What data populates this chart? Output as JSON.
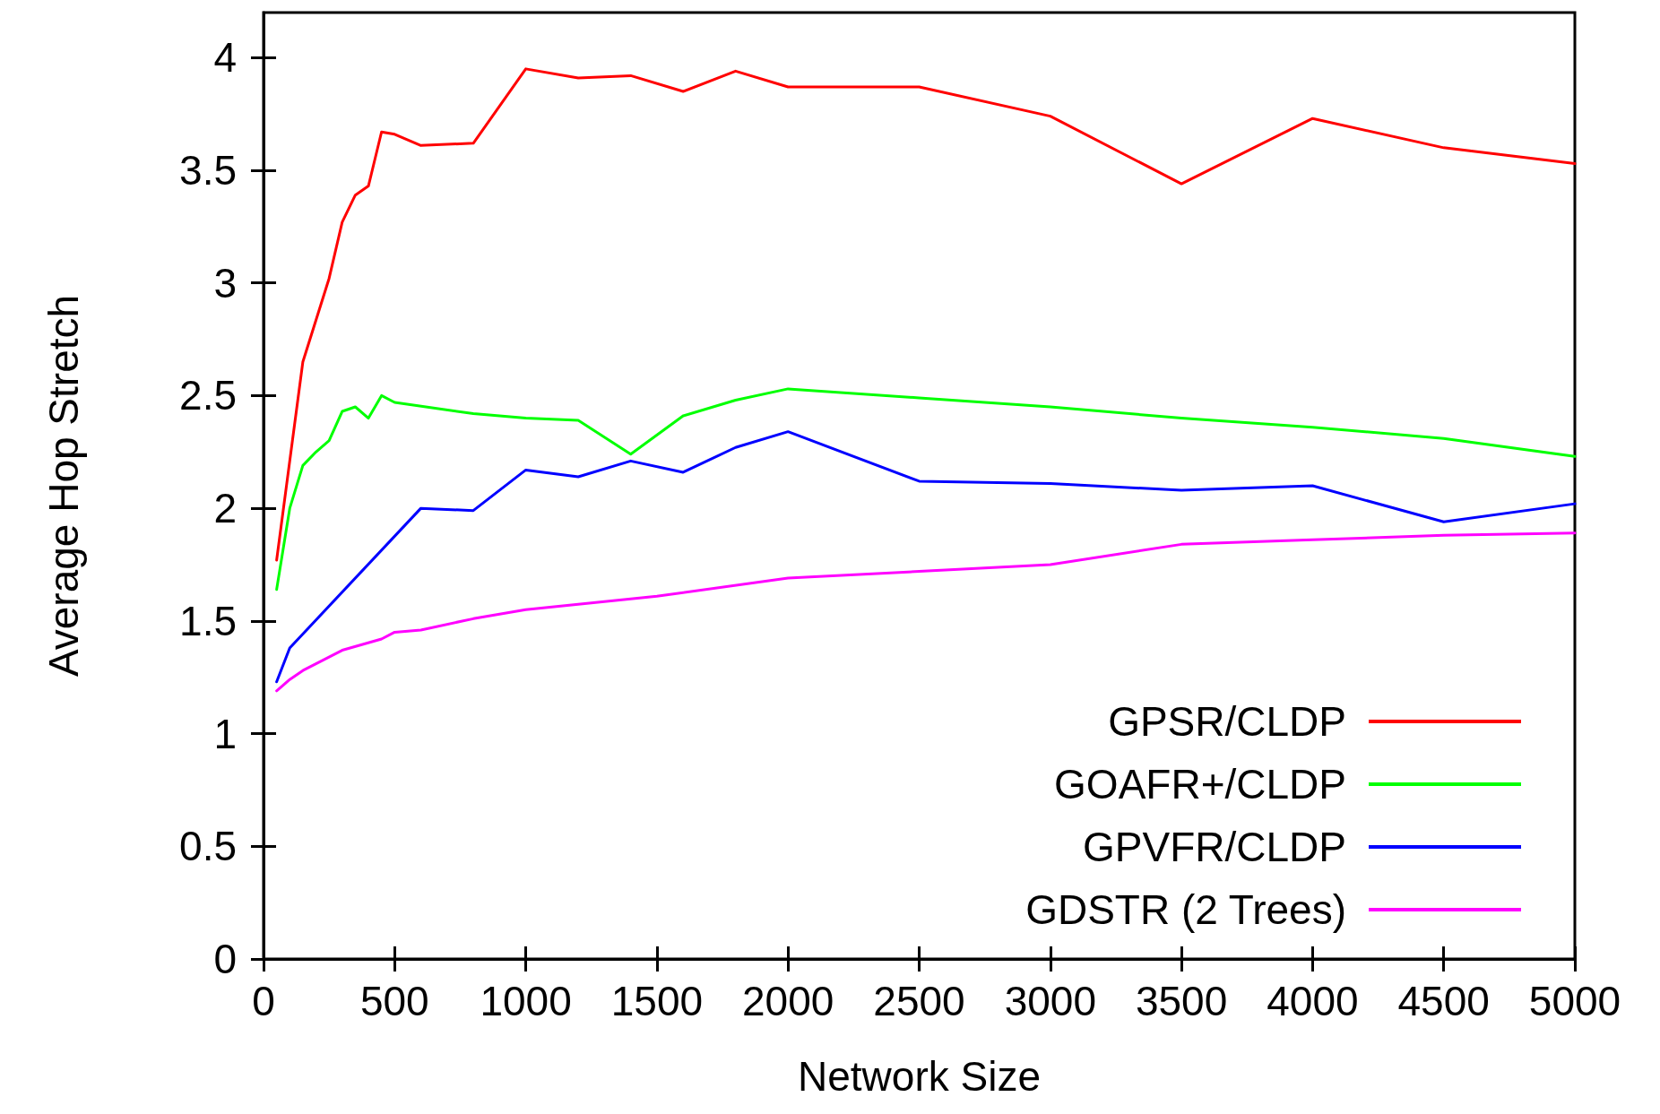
{
  "chart_data": {
    "type": "line",
    "xlabel": "Network Size",
    "ylabel": "Average Hop Stretch",
    "xlim": [
      0,
      5000
    ],
    "xticks": [
      0,
      500,
      1000,
      1500,
      2000,
      2500,
      3000,
      3500,
      4000,
      4500,
      5000
    ],
    "ylim": [
      0,
      4.2
    ],
    "yticks": [
      0,
      0.5,
      1,
      1.5,
      2,
      2.5,
      3,
      3.5,
      4
    ],
    "grid": false,
    "legend": "bottom right",
    "marker": "none",
    "line_style": "solid",
    "series": [
      {
        "name": "GPSR/CLDP",
        "color": "#ff0000",
        "x": [
          50,
          150,
          250,
          300,
          350,
          400,
          450,
          500,
          600,
          800,
          1000,
          1200,
          1400,
          1600,
          1800,
          2000,
          2500,
          3000,
          3500,
          4000,
          4500,
          5000
        ],
        "values": [
          1.77,
          2.65,
          3.02,
          3.27,
          3.39,
          3.43,
          3.67,
          3.66,
          3.61,
          3.62,
          3.95,
          3.91,
          3.92,
          3.85,
          3.94,
          3.87,
          3.87,
          3.74,
          3.44,
          3.73,
          3.6,
          3.53
        ]
      },
      {
        "name": "GOAFR+/CLDP",
        "color": "#00ff00",
        "x": [
          50,
          100,
          150,
          200,
          250,
          300,
          350,
          400,
          450,
          500,
          800,
          1000,
          1200,
          1400,
          1600,
          1800,
          2000,
          2500,
          3000,
          3500,
          4000,
          4500,
          5000
        ],
        "values": [
          1.64,
          2.0,
          2.19,
          2.25,
          2.3,
          2.43,
          2.45,
          2.4,
          2.5,
          2.47,
          2.42,
          2.4,
          2.39,
          2.24,
          2.41,
          2.48,
          2.53,
          2.49,
          2.45,
          2.4,
          2.36,
          2.31,
          2.23
        ]
      },
      {
        "name": "GPVFR/CLDP",
        "color": "#0000ff",
        "x": [
          50,
          100,
          600,
          800,
          1000,
          1200,
          1400,
          1600,
          1800,
          2000,
          2500,
          3000,
          3500,
          4000,
          4500,
          5000
        ],
        "values": [
          1.23,
          1.38,
          2.0,
          1.99,
          2.17,
          2.14,
          2.21,
          2.16,
          2.27,
          2.34,
          2.12,
          2.11,
          2.08,
          2.1,
          1.94,
          2.02
        ]
      },
      {
        "name": "GDSTR (2 Trees)",
        "color": "#ff00ff",
        "x": [
          50,
          100,
          150,
          200,
          300,
          450,
          500,
          600,
          800,
          1000,
          1500,
          2000,
          2500,
          3000,
          3500,
          4000,
          4500,
          5000
        ],
        "values": [
          1.19,
          1.24,
          1.28,
          1.31,
          1.37,
          1.42,
          1.45,
          1.46,
          1.51,
          1.55,
          1.61,
          1.69,
          1.72,
          1.75,
          1.84,
          1.86,
          1.88,
          1.89
        ]
      }
    ]
  }
}
